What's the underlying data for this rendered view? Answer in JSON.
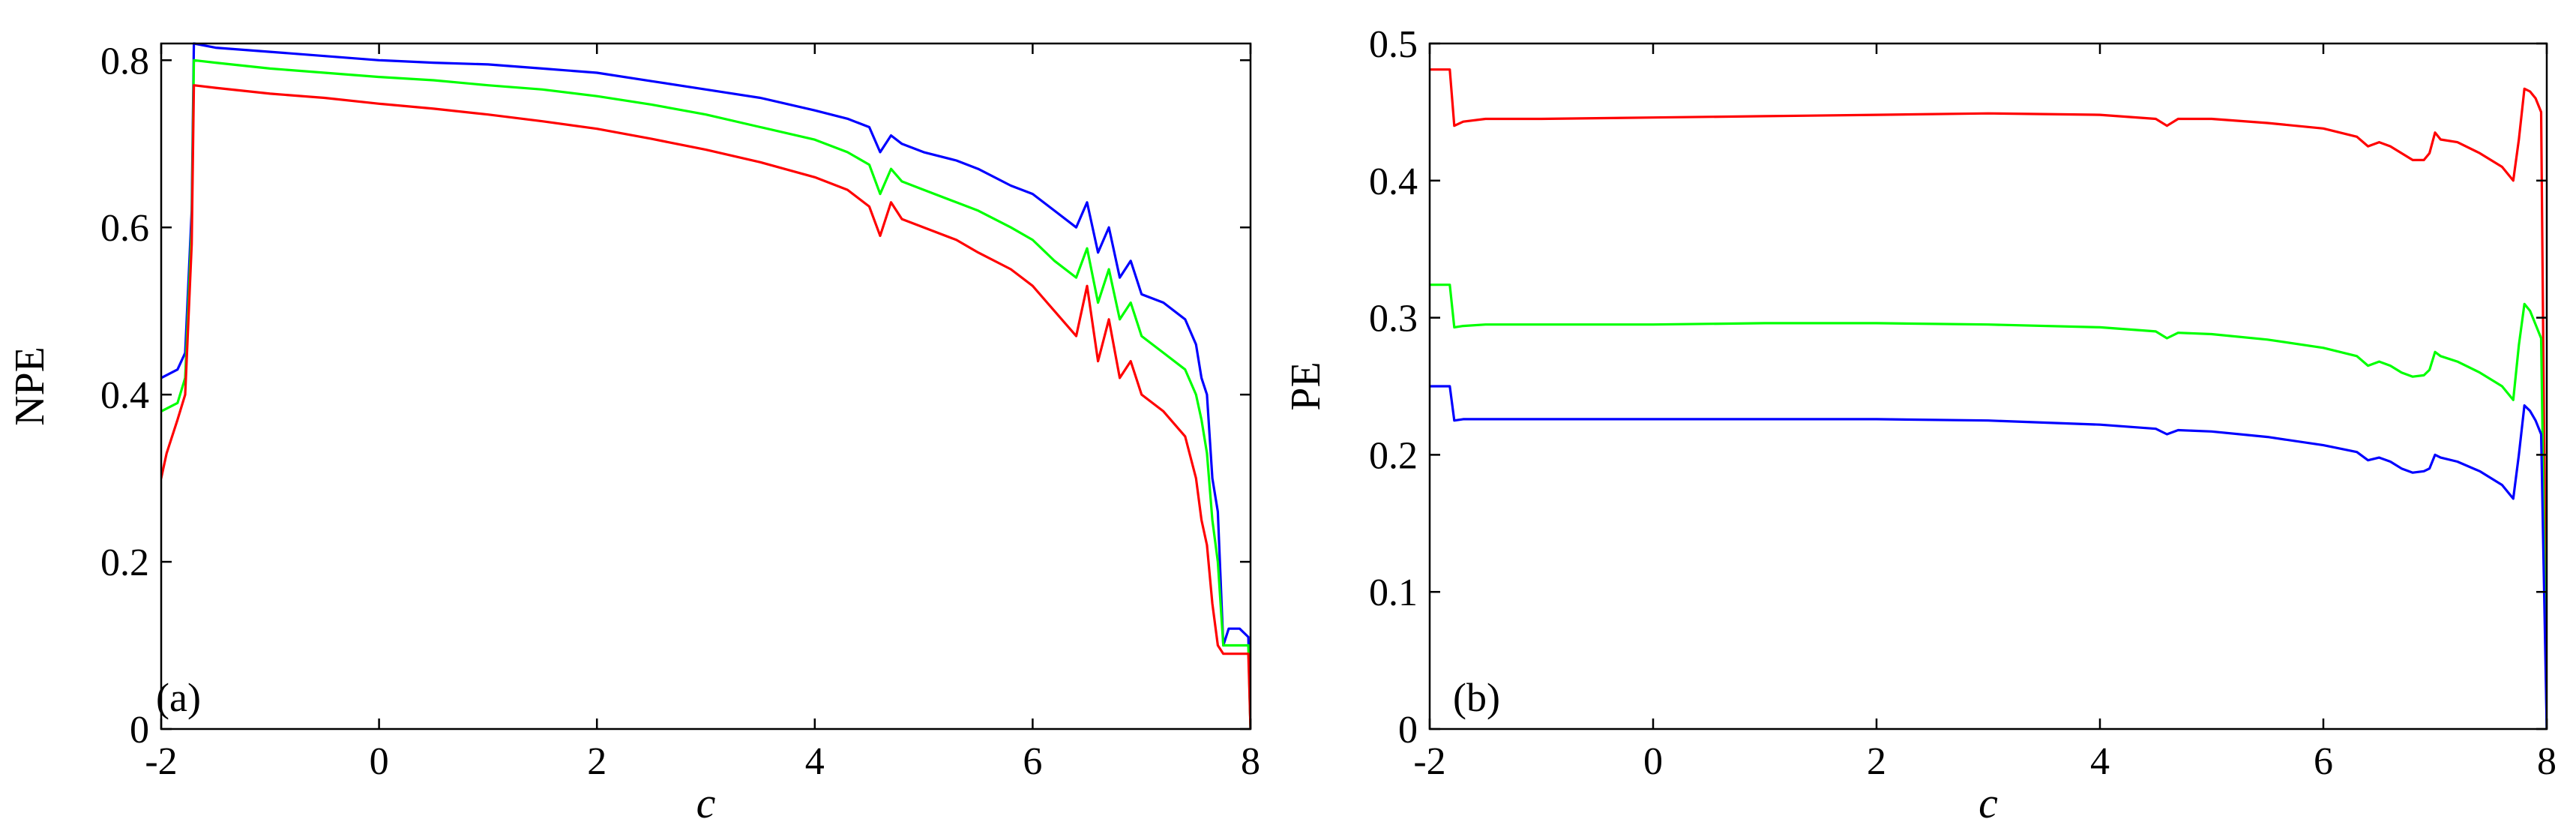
{
  "chart_data": [
    {
      "type": "line",
      "panel_label": "(a)",
      "title": "",
      "xlabel": "c",
      "ylabel": "NPE",
      "xlim": [
        -2,
        8
      ],
      "ylim": [
        0,
        0.82
      ],
      "xticks": [
        -2,
        0,
        2,
        4,
        6,
        8
      ],
      "xtick_labels": [
        "-2",
        "0",
        "2",
        "4",
        "6",
        "8"
      ],
      "yticks": [
        0,
        0.2,
        0.4,
        0.6,
        0.8
      ],
      "ytick_labels": [
        "0",
        "0.2",
        "0.4",
        "0.6",
        "0.8"
      ],
      "grid": false,
      "series": [
        {
          "name": "blue",
          "color": "#0000ff",
          "x": [
            -2.0,
            -1.85,
            -1.78,
            -1.72,
            -1.7,
            -1.5,
            -1.0,
            -0.5,
            0.0,
            0.5,
            1.0,
            1.5,
            2.0,
            2.5,
            3.0,
            3.5,
            4.0,
            4.3,
            4.5,
            4.6,
            4.7,
            4.8,
            5.0,
            5.3,
            5.5,
            5.8,
            6.0,
            6.2,
            6.4,
            6.5,
            6.6,
            6.7,
            6.8,
            6.9,
            7.0,
            7.2,
            7.4,
            7.5,
            7.55,
            7.6,
            7.65,
            7.7,
            7.75,
            7.8,
            7.9,
            7.98,
            8.0
          ],
          "y": [
            0.42,
            0.43,
            0.45,
            0.62,
            0.82,
            0.815,
            0.81,
            0.805,
            0.8,
            0.797,
            0.795,
            0.79,
            0.785,
            0.775,
            0.765,
            0.755,
            0.74,
            0.73,
            0.72,
            0.69,
            0.71,
            0.7,
            0.69,
            0.68,
            0.67,
            0.65,
            0.64,
            0.62,
            0.6,
            0.63,
            0.57,
            0.6,
            0.54,
            0.56,
            0.52,
            0.51,
            0.49,
            0.46,
            0.42,
            0.4,
            0.3,
            0.26,
            0.1,
            0.12,
            0.12,
            0.11,
            0.0
          ]
        },
        {
          "name": "green",
          "color": "#00ff00",
          "x": [
            -2.0,
            -1.85,
            -1.78,
            -1.72,
            -1.7,
            -1.5,
            -1.0,
            -0.5,
            0.0,
            0.5,
            1.0,
            1.5,
            2.0,
            2.5,
            3.0,
            3.5,
            4.0,
            4.3,
            4.5,
            4.6,
            4.7,
            4.8,
            5.0,
            5.3,
            5.5,
            5.8,
            6.0,
            6.2,
            6.4,
            6.5,
            6.6,
            6.7,
            6.8,
            6.9,
            7.0,
            7.2,
            7.4,
            7.5,
            7.55,
            7.6,
            7.65,
            7.7,
            7.75,
            7.8,
            7.9,
            7.98,
            8.0
          ],
          "y": [
            0.38,
            0.39,
            0.42,
            0.6,
            0.8,
            0.797,
            0.79,
            0.785,
            0.78,
            0.776,
            0.77,
            0.765,
            0.757,
            0.747,
            0.735,
            0.72,
            0.705,
            0.69,
            0.675,
            0.64,
            0.67,
            0.655,
            0.645,
            0.63,
            0.62,
            0.6,
            0.585,
            0.56,
            0.54,
            0.575,
            0.51,
            0.55,
            0.49,
            0.51,
            0.47,
            0.45,
            0.43,
            0.4,
            0.37,
            0.33,
            0.25,
            0.2,
            0.1,
            0.1,
            0.1,
            0.1,
            0.0
          ]
        },
        {
          "name": "red",
          "color": "#ff0000",
          "x": [
            -2.0,
            -1.95,
            -1.85,
            -1.78,
            -1.72,
            -1.7,
            -1.5,
            -1.0,
            -0.5,
            0.0,
            0.5,
            1.0,
            1.5,
            2.0,
            2.5,
            3.0,
            3.5,
            4.0,
            4.3,
            4.5,
            4.6,
            4.7,
            4.8,
            5.0,
            5.3,
            5.5,
            5.8,
            6.0,
            6.2,
            6.4,
            6.5,
            6.6,
            6.7,
            6.8,
            6.9,
            7.0,
            7.2,
            7.4,
            7.5,
            7.55,
            7.6,
            7.65,
            7.7,
            7.75,
            7.8,
            7.9,
            7.98,
            8.0
          ],
          "y": [
            0.3,
            0.33,
            0.37,
            0.4,
            0.58,
            0.77,
            0.767,
            0.76,
            0.755,
            0.748,
            0.742,
            0.735,
            0.727,
            0.718,
            0.706,
            0.693,
            0.678,
            0.66,
            0.645,
            0.625,
            0.59,
            0.63,
            0.61,
            0.6,
            0.585,
            0.57,
            0.55,
            0.53,
            0.5,
            0.47,
            0.53,
            0.44,
            0.49,
            0.42,
            0.44,
            0.4,
            0.38,
            0.35,
            0.3,
            0.25,
            0.22,
            0.15,
            0.1,
            0.09,
            0.09,
            0.09,
            0.09,
            0.0
          ]
        }
      ]
    },
    {
      "type": "line",
      "panel_label": "(b)",
      "title": "",
      "xlabel": "c",
      "ylabel": "PE",
      "xlim": [
        -2,
        8
      ],
      "ylim": [
        0,
        0.5
      ],
      "xticks": [
        -2,
        0,
        2,
        4,
        6,
        8
      ],
      "xtick_labels": [
        "-2",
        "0",
        "2",
        "4",
        "6",
        "8"
      ],
      "yticks": [
        0,
        0.1,
        0.2,
        0.3,
        0.4,
        0.5
      ],
      "ytick_labels": [
        "0",
        "0.1",
        "0.2",
        "0.3",
        "0.4",
        "0.5"
      ],
      "grid": false,
      "series": [
        {
          "name": "red",
          "color": "#ff0000",
          "x": [
            -2.0,
            -1.85,
            -1.82,
            -1.78,
            -1.7,
            -1.5,
            -1.0,
            0.0,
            1.0,
            2.0,
            3.0,
            4.0,
            4.5,
            4.6,
            4.7,
            5.0,
            5.5,
            6.0,
            6.3,
            6.4,
            6.5,
            6.6,
            6.7,
            6.8,
            6.9,
            6.95,
            7.0,
            7.05,
            7.2,
            7.4,
            7.6,
            7.7,
            7.75,
            7.8,
            7.85,
            7.9,
            7.95,
            8.0
          ],
          "y": [
            0.481,
            0.481,
            0.481,
            0.44,
            0.443,
            0.445,
            0.445,
            0.446,
            0.447,
            0.448,
            0.449,
            0.448,
            0.445,
            0.44,
            0.445,
            0.445,
            0.442,
            0.438,
            0.432,
            0.425,
            0.428,
            0.425,
            0.42,
            0.415,
            0.415,
            0.42,
            0.435,
            0.43,
            0.428,
            0.42,
            0.41,
            0.4,
            0.43,
            0.467,
            0.465,
            0.46,
            0.45,
            0.0
          ]
        },
        {
          "name": "green",
          "color": "#00ff00",
          "x": [
            -2.0,
            -1.85,
            -1.82,
            -1.78,
            -1.7,
            -1.5,
            -1.0,
            0.0,
            1.0,
            2.0,
            3.0,
            4.0,
            4.5,
            4.6,
            4.7,
            5.0,
            5.5,
            6.0,
            6.3,
            6.4,
            6.5,
            6.6,
            6.7,
            6.8,
            6.9,
            6.95,
            7.0,
            7.05,
            7.2,
            7.4,
            7.6,
            7.7,
            7.75,
            7.8,
            7.85,
            7.9,
            7.95,
            8.0
          ],
          "y": [
            0.324,
            0.324,
            0.324,
            0.293,
            0.294,
            0.295,
            0.295,
            0.295,
            0.296,
            0.296,
            0.295,
            0.293,
            0.29,
            0.285,
            0.289,
            0.288,
            0.284,
            0.278,
            0.272,
            0.265,
            0.268,
            0.265,
            0.26,
            0.257,
            0.258,
            0.262,
            0.275,
            0.272,
            0.268,
            0.26,
            0.25,
            0.24,
            0.28,
            0.31,
            0.305,
            0.295,
            0.285,
            0.0
          ]
        },
        {
          "name": "blue",
          "color": "#0000ff",
          "x": [
            -2.0,
            -1.85,
            -1.82,
            -1.78,
            -1.7,
            -1.5,
            -1.0,
            0.0,
            1.0,
            2.0,
            3.0,
            4.0,
            4.5,
            4.6,
            4.7,
            5.0,
            5.5,
            6.0,
            6.3,
            6.4,
            6.5,
            6.6,
            6.7,
            6.8,
            6.9,
            6.95,
            7.0,
            7.05,
            7.2,
            7.4,
            7.6,
            7.7,
            7.75,
            7.8,
            7.85,
            7.9,
            7.95,
            8.0
          ],
          "y": [
            0.25,
            0.25,
            0.25,
            0.225,
            0.226,
            0.226,
            0.226,
            0.226,
            0.226,
            0.226,
            0.225,
            0.222,
            0.219,
            0.215,
            0.218,
            0.217,
            0.213,
            0.207,
            0.202,
            0.196,
            0.198,
            0.195,
            0.19,
            0.187,
            0.188,
            0.19,
            0.2,
            0.198,
            0.195,
            0.188,
            0.178,
            0.168,
            0.2,
            0.236,
            0.232,
            0.225,
            0.215,
            0.0
          ]
        }
      ]
    }
  ]
}
